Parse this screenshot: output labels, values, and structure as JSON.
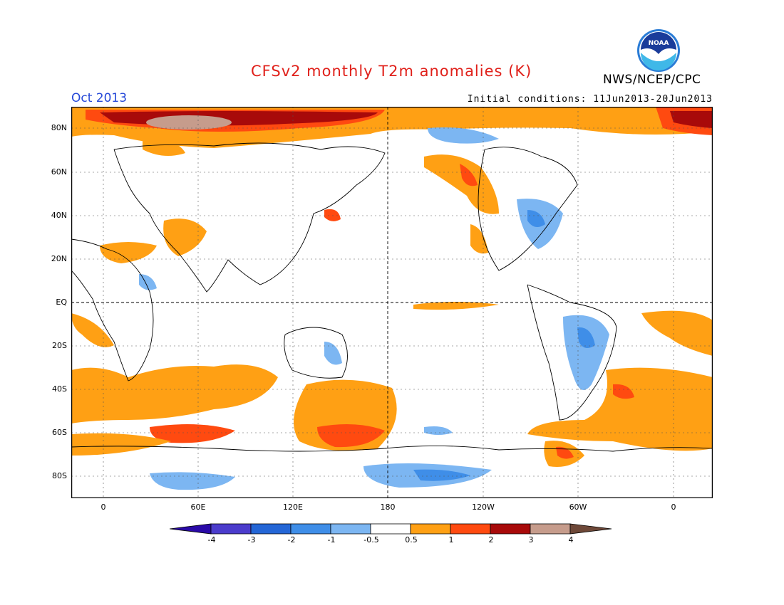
{
  "header": {
    "title": "CFSv2 monthly T2m anomalies (K)",
    "month": "Oct 2013",
    "initial_conditions": "Initial conditions: 11Jun2013-20Jun2013",
    "organization": "NWS/NCEP/CPC",
    "logo_text": "NOAA"
  },
  "axes": {
    "lat_labels": [
      "80N",
      "60N",
      "40N",
      "20N",
      "EQ",
      "20S",
      "40S",
      "60S",
      "80S"
    ],
    "lon_labels": [
      "0",
      "60E",
      "120E",
      "180",
      "120W",
      "60W",
      "0"
    ]
  },
  "colorbar": {
    "labels": [
      "-4",
      "-3",
      "-2",
      "-1",
      "-0.5",
      "0.5",
      "1",
      "2",
      "3",
      "4"
    ],
    "colors": [
      "#2a0aa8",
      "#4b3ccc",
      "#2466d6",
      "#3f8ee8",
      "#7cb6f2",
      "#ffffff",
      "#ffa014",
      "#ff4a10",
      "#a80a0a",
      "#c69c8c",
      "#6e4838"
    ]
  },
  "colors": {
    "title": "#e0201a",
    "month": "#2548d8",
    "warm_1": "#ffa014",
    "warm_2": "#ff4a10",
    "warm_3": "#a80a0a",
    "cool_1": "#7cb6f2",
    "cool_2": "#3f8ee8",
    "cool_3": "#2466d6"
  }
}
